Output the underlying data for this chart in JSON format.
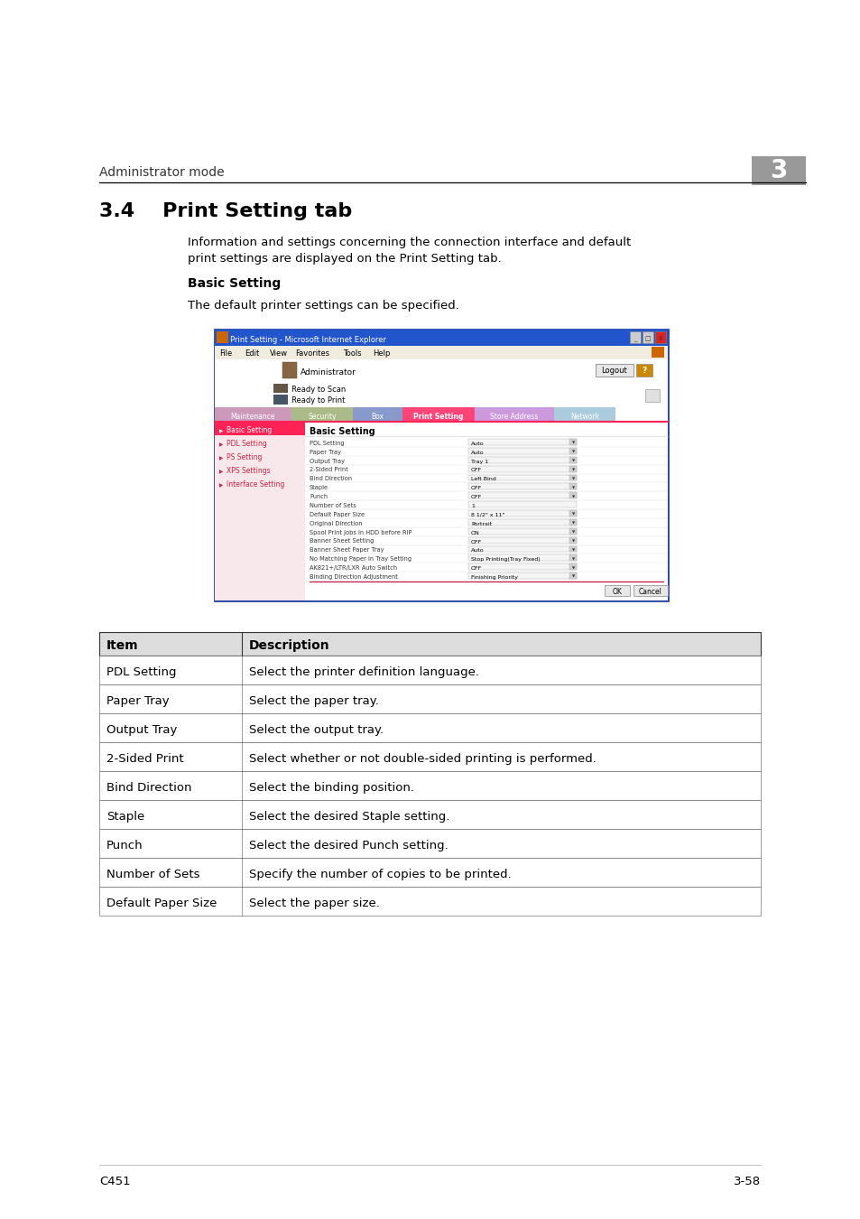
{
  "bg_color": "#ffffff",
  "header_text": "Administrator mode",
  "header_number": "3",
  "header_number_bg": "#999999",
  "section_title": "3.4    Print Setting tab",
  "section_desc1": "Information and settings concerning the connection interface and default",
  "section_desc2": "print settings are displayed on the Print Setting tab.",
  "subsection_title": "Basic Setting",
  "subsection_desc": "The default printer settings can be specified.",
  "footer_left": "C451",
  "footer_right": "3-58",
  "table_header": [
    "Item",
    "Description"
  ],
  "table_rows": [
    [
      "PDL Setting",
      "Select the printer definition language."
    ],
    [
      "Paper Tray",
      "Select the paper tray."
    ],
    [
      "Output Tray",
      "Select the output tray."
    ],
    [
      "2-Sided Print",
      "Select whether or not double-sided printing is performed."
    ],
    [
      "Bind Direction",
      "Select the binding position."
    ],
    [
      "Staple",
      "Select the desired Staple setting."
    ],
    [
      "Punch",
      "Select the desired Punch setting."
    ],
    [
      "Number of Sets",
      "Specify the number of copies to be printed."
    ],
    [
      "Default Paper Size",
      "Select the paper size."
    ]
  ],
  "screenshot": {
    "title_bar": "Print Setting - Microsoft Internet Explorer",
    "menu_items": [
      "File",
      "Edit",
      "View",
      "Favorites",
      "Tools",
      "Help"
    ],
    "user_label": "Administrator",
    "logout_btn": "Logout",
    "status1": "Ready to Scan",
    "status2": "Ready to Print",
    "tabs": [
      "Maintenance",
      "Security",
      "Box",
      "Print Setting",
      "Store Address",
      "Network"
    ],
    "tab_colors": [
      "#cc99bb",
      "#aabb88",
      "#8899cc",
      "#ff4477",
      "#cc99dd",
      "#aaccdd"
    ],
    "active_tab_idx": 3,
    "left_nav": [
      "Basic Setting",
      "PDL Setting",
      "PS Setting",
      "XPS Settings",
      "Interface Setting"
    ],
    "active_nav": 0,
    "content_title": "Basic Setting",
    "fields_left": [
      "PDL Setting",
      "Paper Tray",
      "Output Tray",
      "2-Sided Print",
      "Bind Direction",
      "Staple",
      "Punch",
      "Number of Sets",
      "Default Paper Size",
      "Original Direction",
      "Spool Print Jobs in HDD before RIP",
      "Banner Sheet Setting",
      "Banner Sheet Paper Tray",
      "No Matching Paper in Tray Setting",
      "AK821+/LTR/LXR Auto Switch",
      "Binding Direction Adjustment"
    ],
    "fields_right": [
      "Auto",
      "Auto",
      "Tray 1",
      "OFF",
      "Left Bind",
      "OFF",
      "OFF",
      "1",
      "8 1/2\" x 11\"",
      "Portrait",
      "ON",
      "OFF",
      "Auto",
      "Stop Printing(Tray Fixed)",
      "OFF",
      "Finishing Priority"
    ],
    "ok_btn": "OK",
    "cancel_btn": "Cancel"
  }
}
